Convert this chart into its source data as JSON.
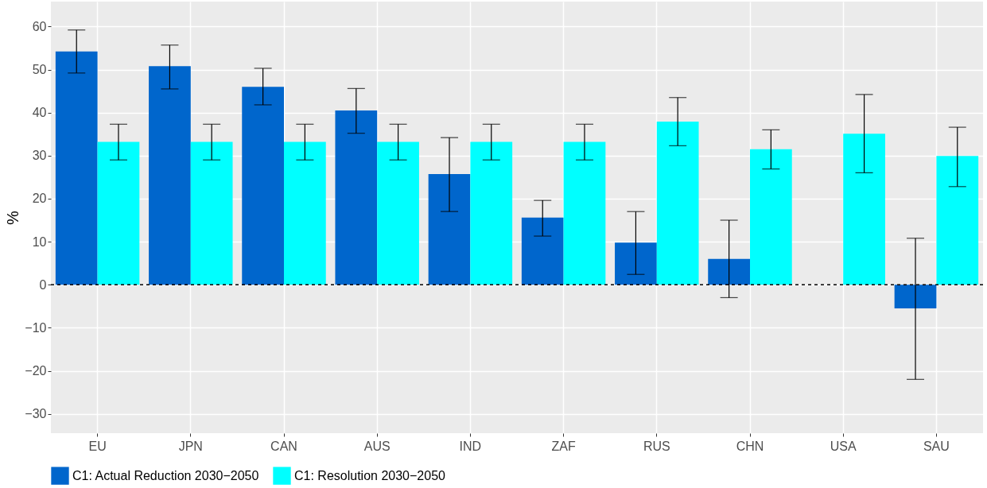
{
  "chart_data": {
    "type": "bar",
    "ylabel": "%",
    "categories": [
      "EU",
      "JPN",
      "CAN",
      "AUS",
      "IND",
      "ZAF",
      "RUS",
      "CHN",
      "USA",
      "SAU"
    ],
    "series": [
      {
        "name": "C1: Actual Reduction 2030−2050",
        "color": "#0066cc",
        "values": [
          54.2,
          50.8,
          46,
          40.5,
          25.7,
          15.6,
          9.8,
          6,
          0,
          -5.5
        ],
        "errors": [
          [
            49.2,
            59.2
          ],
          [
            45.5,
            55.7
          ],
          [
            41.8,
            50.3
          ],
          [
            35.2,
            45.6
          ],
          [
            17,
            34.2
          ],
          [
            11.3,
            19.6
          ],
          [
            2.4,
            17
          ],
          [
            -3,
            15
          ],
          null,
          [
            -22,
            10.8
          ]
        ]
      },
      {
        "name": "C1: Resolution 2030−2050",
        "color": "#00ffff",
        "values": [
          33.2,
          33.2,
          33.2,
          33.2,
          33.2,
          33.2,
          37.9,
          31.5,
          35.1,
          29.9
        ],
        "errors": [
          [
            29,
            37.3
          ],
          [
            29,
            37.3
          ],
          [
            29,
            37.3
          ],
          [
            29,
            37.3
          ],
          [
            29,
            37.3
          ],
          [
            29,
            37.3
          ],
          [
            32.3,
            43.5
          ],
          [
            26.9,
            36
          ],
          [
            26,
            44.2
          ],
          [
            22.8,
            36.6
          ]
        ]
      }
    ],
    "ylim": [
      -34.5,
      65.8
    ],
    "yticks": [
      -30,
      -20,
      -10,
      0,
      10,
      20,
      30,
      40,
      50,
      60
    ],
    "grid": true,
    "legend": "bottom",
    "ref_lines": [
      {
        "axis": "y",
        "value": 0,
        "color": "#000000",
        "line_style": "dashed"
      }
    ]
  }
}
